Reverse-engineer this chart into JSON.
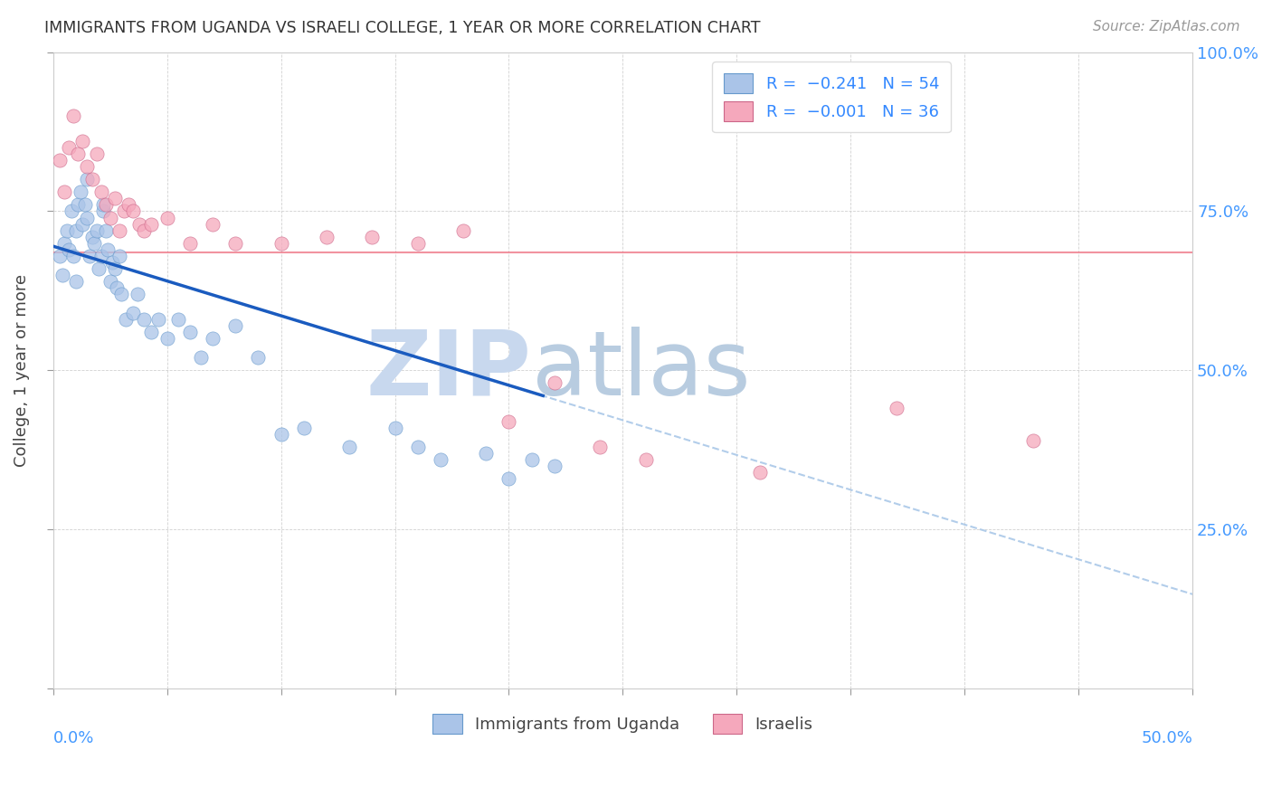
{
  "title": "IMMIGRANTS FROM UGANDA VS ISRAELI COLLEGE, 1 YEAR OR MORE CORRELATION CHART",
  "source": "Source: ZipAtlas.com",
  "ylabel": "College, 1 year or more",
  "yticks": [
    0.0,
    0.25,
    0.5,
    0.75,
    1.0
  ],
  "ytick_labels": [
    "",
    "25.0%",
    "50.0%",
    "75.0%",
    "100.0%"
  ],
  "xlim": [
    0.0,
    0.5
  ],
  "ylim": [
    0.0,
    1.0
  ],
  "color_uganda": "#aac4e8",
  "color_israel": "#f5a8bc",
  "trendline_uganda_solid_color": "#1a5bbf",
  "trendline_dashed_color": "#aac8e8",
  "horizontal_line_color": "#f08090",
  "watermark_zip_color": "#c8d8ee",
  "watermark_atlas_color": "#b8cce0",
  "background_color": "#ffffff",
  "uganda_x": [
    0.003,
    0.004,
    0.005,
    0.006,
    0.007,
    0.008,
    0.009,
    0.01,
    0.01,
    0.011,
    0.012,
    0.013,
    0.014,
    0.015,
    0.015,
    0.016,
    0.017,
    0.018,
    0.019,
    0.02,
    0.021,
    0.022,
    0.022,
    0.023,
    0.024,
    0.025,
    0.026,
    0.027,
    0.028,
    0.029,
    0.03,
    0.032,
    0.035,
    0.037,
    0.04,
    0.043,
    0.046,
    0.05,
    0.055,
    0.06,
    0.065,
    0.07,
    0.08,
    0.09,
    0.1,
    0.11,
    0.13,
    0.15,
    0.16,
    0.17,
    0.19,
    0.2,
    0.21,
    0.22
  ],
  "uganda_y": [
    0.68,
    0.65,
    0.7,
    0.72,
    0.69,
    0.75,
    0.68,
    0.64,
    0.72,
    0.76,
    0.78,
    0.73,
    0.76,
    0.74,
    0.8,
    0.68,
    0.71,
    0.7,
    0.72,
    0.66,
    0.68,
    0.75,
    0.76,
    0.72,
    0.69,
    0.64,
    0.67,
    0.66,
    0.63,
    0.68,
    0.62,
    0.58,
    0.59,
    0.62,
    0.58,
    0.56,
    0.58,
    0.55,
    0.58,
    0.56,
    0.52,
    0.55,
    0.57,
    0.52,
    0.4,
    0.41,
    0.38,
    0.41,
    0.38,
    0.36,
    0.37,
    0.33,
    0.36,
    0.35
  ],
  "israel_x": [
    0.003,
    0.005,
    0.007,
    0.009,
    0.011,
    0.013,
    0.015,
    0.017,
    0.019,
    0.021,
    0.023,
    0.025,
    0.027,
    0.029,
    0.031,
    0.033,
    0.035,
    0.038,
    0.04,
    0.043,
    0.05,
    0.06,
    0.07,
    0.08,
    0.1,
    0.12,
    0.14,
    0.16,
    0.18,
    0.2,
    0.22,
    0.24,
    0.26,
    0.31,
    0.37,
    0.43
  ],
  "israel_y": [
    0.83,
    0.78,
    0.85,
    0.9,
    0.84,
    0.86,
    0.82,
    0.8,
    0.84,
    0.78,
    0.76,
    0.74,
    0.77,
    0.72,
    0.75,
    0.76,
    0.75,
    0.73,
    0.72,
    0.73,
    0.74,
    0.7,
    0.73,
    0.7,
    0.7,
    0.71,
    0.71,
    0.7,
    0.72,
    0.42,
    0.48,
    0.38,
    0.36,
    0.34,
    0.44,
    0.39
  ],
  "horizontal_line_y": 0.685,
  "uganda_trend_x0": 0.0,
  "uganda_trend_y0": 0.695,
  "uganda_trend_x1": 0.215,
  "uganda_trend_y1": 0.46,
  "dashed_trend_x0": 0.0,
  "dashed_trend_y0": 0.695,
  "dashed_trend_x1": 0.5,
  "dashed_trend_y1": 0.148
}
